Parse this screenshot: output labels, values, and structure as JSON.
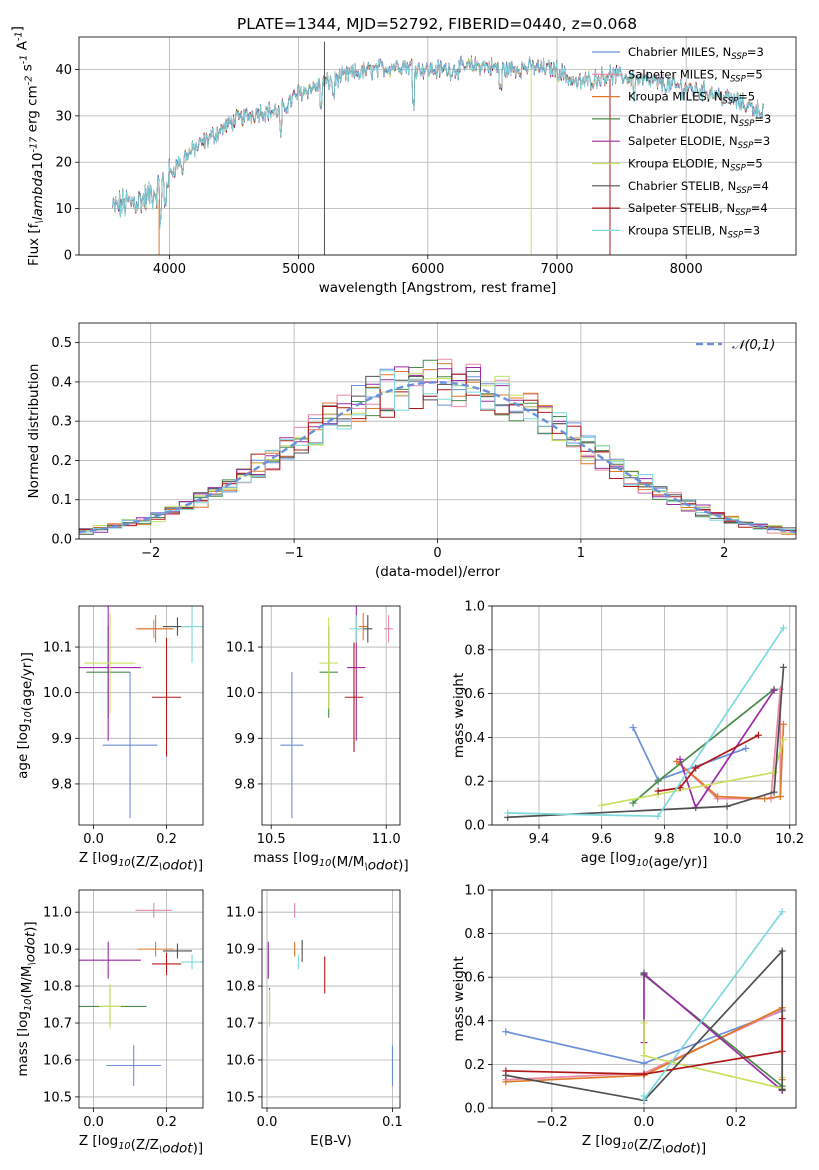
{
  "figure": {
    "title": "PLATE=1344, MJD=52792, FIBERID=0440, z=0.068"
  },
  "colors": {
    "chabrier_miles": "#6b8fd9",
    "salpeter_miles": "#e88aa8",
    "kroupa_miles": "#e0782a",
    "chabrier_elodie": "#4a8c4a",
    "salpeter_elodie": "#9b2aa8",
    "kroupa_elodie": "#c8e060",
    "chabrier_stelib": "#505050",
    "salpeter_stelib": "#b01818",
    "kroupa_stelib": "#7fd8dc",
    "normal_curve": "#6b8fd9"
  },
  "chart_data": [
    {
      "id": "spectrum",
      "type": "line",
      "xlabel": "wavelength [Angstrom, rest frame]",
      "ylabel": "Flux [f$_\\lambda$10$^{-17}$ erg cm$^{-2}$ s$^{-1}$ A$^{-1}$]",
      "xlim": [
        3300,
        8850
      ],
      "ylim": [
        0,
        47
      ],
      "xticks": [
        "4000",
        "5000",
        "6000",
        "7000",
        "8000"
      ],
      "yticks": [
        "0",
        "10",
        "20",
        "30",
        "40"
      ],
      "legend": {
        "placement": "right",
        "entries": [
          {
            "key": "chabrier_miles",
            "label": "Chabrier MILES, N",
            "sub": "SSP",
            "suffix": "=3"
          },
          {
            "key": "salpeter_miles",
            "label": "Salpeter MILES, N",
            "sub": "SSP",
            "suffix": "=5"
          },
          {
            "key": "kroupa_miles",
            "label": "Kroupa MILES, N",
            "sub": "SSP",
            "suffix": "=5"
          },
          {
            "key": "chabrier_elodie",
            "label": "Chabrier ELODIE, N",
            "sub": "SSP",
            "suffix": "=3"
          },
          {
            "key": "salpeter_elodie",
            "label": "Salpeter ELODIE, N",
            "sub": "SSP",
            "suffix": "=3"
          },
          {
            "key": "kroupa_elodie",
            "label": "Kroupa ELODIE, N",
            "sub": "SSP",
            "suffix": "=5"
          },
          {
            "key": "chabrier_stelib",
            "label": "Chabrier STELIB, N",
            "sub": "SSP",
            "suffix": "=4"
          },
          {
            "key": "salpeter_stelib",
            "label": "Salpeter STELIB, N",
            "sub": "SSP",
            "suffix": "=4"
          },
          {
            "key": "kroupa_stelib",
            "label": "Kroupa STELIB, N",
            "sub": "SSP",
            "suffix": "=3"
          }
        ]
      },
      "continuum": [
        [
          3560,
          10
        ],
        [
          3650,
          11
        ],
        [
          3800,
          12
        ],
        [
          3900,
          13.5
        ],
        [
          3990,
          17
        ],
        [
          4100,
          21
        ],
        [
          4200,
          23
        ],
        [
          4300,
          25
        ],
        [
          4500,
          29
        ],
        [
          4700,
          31
        ],
        [
          4860,
          31
        ],
        [
          5000,
          35
        ],
        [
          5200,
          37
        ],
        [
          5400,
          39
        ],
        [
          5600,
          40
        ],
        [
          5800,
          41
        ],
        [
          6000,
          40
        ],
        [
          6200,
          40
        ],
        [
          6400,
          41
        ],
        [
          6600,
          40
        ],
        [
          6800,
          40.5
        ],
        [
          7000,
          40
        ],
        [
          7150,
          37
        ],
        [
          7300,
          38
        ],
        [
          7400,
          39
        ],
        [
          7600,
          38
        ],
        [
          7800,
          37
        ],
        [
          8000,
          36
        ],
        [
          8200,
          35
        ],
        [
          8400,
          33
        ],
        [
          8600,
          31
        ]
      ],
      "vertical_lines": [
        {
          "x": 5200,
          "y0": 0,
          "y1": 46,
          "key": "chabrier_stelib"
        },
        {
          "x": 6800,
          "y0": 0,
          "y1": 40,
          "key": "kroupa_elodie"
        },
        {
          "x": 7410,
          "y0": 0,
          "y1": 38,
          "key": "salpeter_stelib"
        },
        {
          "x": 3920,
          "y0": 0,
          "y1": 12,
          "key": "kroupa_miles"
        }
      ]
    },
    {
      "id": "residuals",
      "type": "histogram",
      "xlabel": "(data-model)/error",
      "ylabel": "Normed distribution",
      "xlim": [
        -2.5,
        2.5
      ],
      "ylim": [
        0,
        0.55
      ],
      "xticks": [
        "−2",
        "−1",
        "0",
        "1",
        "2"
      ],
      "yticks": [
        "0.0",
        "0.1",
        "0.2",
        "0.3",
        "0.4",
        "0.5"
      ],
      "legend": {
        "placement": "top-right",
        "label": "$\\mathcal{N}(0,1)$"
      },
      "bin_width": 0.1,
      "bins_from": -2.5,
      "bins_to": 2.5
    },
    {
      "id": "age_vs_Z",
      "type": "scatter",
      "xlabel": "Z [log$_{10}$(Z/Z$_\\odot$)]",
      "ylabel": "age  [log$_{10}$(age/yr)]",
      "xlim": [
        -0.04,
        0.3
      ],
      "ylim": [
        9.71,
        10.19
      ],
      "xticks": [
        "0.0",
        "0.2"
      ],
      "yticks": [
        "9.8",
        "9.9",
        "10.0",
        "10.1"
      ],
      "points": [
        {
          "key": "chabrier_miles",
          "x": 0.1,
          "y": 9.885,
          "xerr": 0.075,
          "yerr": 0.16
        },
        {
          "key": "salpeter_miles",
          "x": 0.165,
          "y": 10.14,
          "xerr": 0.05,
          "yerr": 0.02
        },
        {
          "key": "kroupa_miles",
          "x": 0.17,
          "y": 10.14,
          "xerr": 0.05,
          "yerr": 0.03
        },
        {
          "key": "chabrier_elodie",
          "x": 0.04,
          "y": 10.045,
          "xerr": 0.06,
          "yerr": 0.1
        },
        {
          "key": "salpeter_elodie",
          "x": 0.04,
          "y": 10.055,
          "xerr": 0.09,
          "yerr": 0.16
        },
        {
          "key": "kroupa_elodie",
          "x": 0.045,
          "y": 10.065,
          "xerr": 0.07,
          "yerr": 0.11
        },
        {
          "key": "chabrier_stelib",
          "x": 0.23,
          "y": 10.145,
          "xerr": 0.04,
          "yerr": 0.02
        },
        {
          "key": "salpeter_stelib",
          "x": 0.2,
          "y": 9.99,
          "xerr": 0.04,
          "yerr": 0.13
        },
        {
          "key": "kroupa_stelib",
          "x": 0.27,
          "y": 10.145,
          "xerr": 0.03,
          "yerr": 0.08
        }
      ]
    },
    {
      "id": "age_vs_mass",
      "type": "scatter",
      "xlabel": "mass [log$_{10}$(M/M$_\\odot$)]",
      "ylabel": "",
      "xlim": [
        10.46,
        11.06
      ],
      "ylim": [
        9.71,
        10.19
      ],
      "xticks": [
        "10.5",
        "11.0"
      ],
      "yticks": [
        "9.8",
        "9.9",
        "10.0",
        "10.1"
      ],
      "points": [
        {
          "key": "chabrier_miles",
          "x": 10.59,
          "y": 9.885,
          "xerr": 0.05,
          "yerr": 0.16
        },
        {
          "key": "salpeter_miles",
          "x": 11.01,
          "y": 10.14,
          "xerr": 0.02,
          "yerr": 0.03
        },
        {
          "key": "kroupa_miles",
          "x": 10.9,
          "y": 10.145,
          "xerr": 0.02,
          "yerr": 0.03
        },
        {
          "key": "chabrier_elodie",
          "x": 10.75,
          "y": 10.045,
          "xerr": 0.04,
          "yerr": 0.1
        },
        {
          "key": "salpeter_elodie",
          "x": 10.87,
          "y": 10.055,
          "xerr": 0.04,
          "yerr": 0.16
        },
        {
          "key": "kroupa_elodie",
          "x": 10.75,
          "y": 10.065,
          "xerr": 0.04,
          "yerr": 0.1
        },
        {
          "key": "chabrier_stelib",
          "x": 10.92,
          "y": 10.14,
          "xerr": 0.02,
          "yerr": 0.03
        },
        {
          "key": "salpeter_stelib",
          "x": 10.86,
          "y": 9.99,
          "xerr": 0.04,
          "yerr": 0.12
        },
        {
          "key": "kroupa_stelib",
          "x": 10.87,
          "y": 10.14,
          "xerr": 0.03,
          "yerr": 0.03
        }
      ]
    },
    {
      "id": "massweight_vs_age",
      "type": "line",
      "xlabel": "age  [log$_{10}$(age/yr)]",
      "ylabel": "mass weight",
      "xlim": [
        9.25,
        10.22
      ],
      "ylim": [
        0,
        1
      ],
      "xticks": [
        "9.4",
        "9.6",
        "9.8",
        "10.0",
        "10.2"
      ],
      "yticks": [
        "0.0",
        "0.2",
        "0.4",
        "0.6",
        "0.8",
        "1.0"
      ],
      "series": [
        {
          "key": "chabrier_miles",
          "x": [
            9.7,
            9.78,
            10.06
          ],
          "y": [
            0.445,
            0.205,
            0.35
          ]
        },
        {
          "key": "salpeter_miles",
          "x": [
            9.84,
            9.97,
            10.14,
            10.17,
            10.17
          ],
          "y": [
            0.29,
            0.12,
            0.12,
            0.62,
            0.13
          ]
        },
        {
          "key": "kroupa_miles",
          "x": [
            9.84,
            9.97,
            10.12,
            10.17,
            10.18
          ],
          "y": [
            0.29,
            0.13,
            0.12,
            0.13,
            0.46
          ]
        },
        {
          "key": "chabrier_elodie",
          "x": [
            9.7,
            9.78,
            10.15
          ],
          "y": [
            0.1,
            0.2,
            0.62
          ]
        },
        {
          "key": "salpeter_elodie",
          "x": [
            9.85,
            9.9,
            10.15
          ],
          "y": [
            0.3,
            0.08,
            0.615
          ]
        },
        {
          "key": "kroupa_elodie",
          "x": [
            9.6,
            9.78,
            10.15,
            10.18
          ],
          "y": [
            0.09,
            0.14,
            0.24,
            0.39
          ]
        },
        {
          "key": "chabrier_stelib",
          "x": [
            9.3,
            10.0,
            10.15,
            10.18
          ],
          "y": [
            0.035,
            0.085,
            0.15,
            0.72
          ]
        },
        {
          "key": "salpeter_stelib",
          "x": [
            9.78,
            9.85,
            9.9,
            10.1
          ],
          "y": [
            0.155,
            0.17,
            0.26,
            0.41
          ]
        },
        {
          "key": "kroupa_stelib",
          "x": [
            9.3,
            9.78,
            10.18
          ],
          "y": [
            0.055,
            0.04,
            0.9
          ]
        }
      ]
    },
    {
      "id": "mass_vs_Z",
      "type": "scatter",
      "xlabel": "Z [log$_{10}$(Z/Z$_\\odot$)]",
      "ylabel": "mass [log$_{10}$(M/M$_\\odot$)]",
      "xlim": [
        -0.04,
        0.3
      ],
      "ylim": [
        10.47,
        11.06
      ],
      "xticks": [
        "0.0",
        "0.2"
      ],
      "yticks": [
        "10.5",
        "10.6",
        "10.7",
        "10.8",
        "10.9",
        "11.0"
      ],
      "points": [
        {
          "key": "chabrier_miles",
          "x": 0.11,
          "y": 10.585,
          "xerr": 0.075,
          "yerr": 0.055
        },
        {
          "key": "salpeter_miles",
          "x": 0.165,
          "y": 11.005,
          "xerr": 0.05,
          "yerr": 0.02
        },
        {
          "key": "kroupa_miles",
          "x": 0.17,
          "y": 10.9,
          "xerr": 0.05,
          "yerr": 0.02
        },
        {
          "key": "chabrier_elodie",
          "x": 0.045,
          "y": 10.745,
          "xerr": 0.1,
          "yerr": 0.05
        },
        {
          "key": "salpeter_elodie",
          "x": 0.04,
          "y": 10.87,
          "xerr": 0.09,
          "yerr": 0.05
        },
        {
          "key": "kroupa_elodie",
          "x": 0.045,
          "y": 10.745,
          "xerr": 0.03,
          "yerr": 0.06
        },
        {
          "key": "chabrier_stelib",
          "x": 0.23,
          "y": 10.895,
          "xerr": 0.04,
          "yerr": 0.02
        },
        {
          "key": "salpeter_stelib",
          "x": 0.2,
          "y": 10.86,
          "xerr": 0.04,
          "yerr": 0.03
        },
        {
          "key": "kroupa_stelib",
          "x": 0.27,
          "y": 10.865,
          "xerr": 0.03,
          "yerr": 0.02
        }
      ]
    },
    {
      "id": "mass_vs_ebv",
      "type": "scatter",
      "xlabel": "E(B-V)",
      "ylabel": "",
      "xlim": [
        -0.004,
        0.106
      ],
      "ylim": [
        10.47,
        11.06
      ],
      "xticks": [
        "0.0",
        "0.1"
      ],
      "yticks": [
        "10.5",
        "10.6",
        "10.7",
        "10.8",
        "10.9",
        "11.0"
      ],
      "points": [
        {
          "key": "chabrier_miles",
          "x": 0.1,
          "y": 10.585,
          "xerr": 0,
          "yerr": 0.055
        },
        {
          "key": "salpeter_miles",
          "x": 0.022,
          "y": 11.005,
          "xerr": 0,
          "yerr": 0.02
        },
        {
          "key": "kroupa_miles",
          "x": 0.022,
          "y": 10.9,
          "xerr": 0,
          "yerr": 0.02
        },
        {
          "key": "chabrier_elodie",
          "x": 0.002,
          "y": 10.745,
          "xerr": 0,
          "yerr": 0.05
        },
        {
          "key": "salpeter_elodie",
          "x": 0.001,
          "y": 10.87,
          "xerr": 0,
          "yerr": 0.05
        },
        {
          "key": "kroupa_elodie",
          "x": 0.002,
          "y": 10.74,
          "xerr": 0,
          "yerr": 0.05
        },
        {
          "key": "chabrier_stelib",
          "x": 0.028,
          "y": 10.895,
          "xerr": 0,
          "yerr": 0.03
        },
        {
          "key": "salpeter_stelib",
          "x": 0.046,
          "y": 10.83,
          "xerr": 0,
          "yerr": 0.05
        },
        {
          "key": "kroupa_stelib",
          "x": 0.025,
          "y": 10.865,
          "xerr": 0,
          "yerr": 0.02
        }
      ]
    },
    {
      "id": "massweight_vs_Z",
      "type": "line",
      "xlabel": "Z [log$_{10}$(Z/Z$_\\odot$)]",
      "ylabel": "mass weight",
      "xlim": [
        -0.33,
        0.33
      ],
      "ylim": [
        0,
        1
      ],
      "xticks": [
        "−0.2",
        "0.0",
        "0.2"
      ],
      "yticks": [
        "0.0",
        "0.2",
        "0.4",
        "0.6",
        "0.8",
        "1.0"
      ],
      "series": [
        {
          "key": "chabrier_miles",
          "x": [
            -0.3,
            0.0,
            0.3
          ],
          "y": [
            0.35,
            0.205,
            0.445
          ]
        },
        {
          "key": "salpeter_miles",
          "x": [
            -0.3,
            0.0,
            0.3
          ],
          "y": [
            0.13,
            0.16,
            0.45
          ]
        },
        {
          "key": "kroupa_miles",
          "x": [
            -0.3,
            0.0,
            0.3,
            0.3
          ],
          "y": [
            0.12,
            0.15,
            0.46,
            0.13
          ]
        },
        {
          "key": "chabrier_elodie",
          "x": [
            0.0,
            0.0,
            0.3
          ],
          "y": [
            0.62,
            0.61,
            0.1
          ]
        },
        {
          "key": "salpeter_elodie",
          "x": [
            0.0,
            0.0,
            0.3
          ],
          "y": [
            0.3,
            0.615,
            0.08
          ]
        },
        {
          "key": "kroupa_elodie",
          "x": [
            0.0,
            0.0,
            0.3,
            0.3
          ],
          "y": [
            0.39,
            0.24,
            0.09,
            0.14
          ]
        },
        {
          "key": "chabrier_stelib",
          "x": [
            -0.3,
            0.0,
            0.3,
            0.3
          ],
          "y": [
            0.15,
            0.035,
            0.72,
            0.085
          ]
        },
        {
          "key": "salpeter_stelib",
          "x": [
            -0.3,
            0.0,
            0.3,
            0.3
          ],
          "y": [
            0.17,
            0.155,
            0.26,
            0.41
          ]
        },
        {
          "key": "kroupa_stelib",
          "x": [
            0.0,
            0.0,
            0.3
          ],
          "y": [
            0.055,
            0.04,
            0.9
          ]
        }
      ]
    }
  ]
}
